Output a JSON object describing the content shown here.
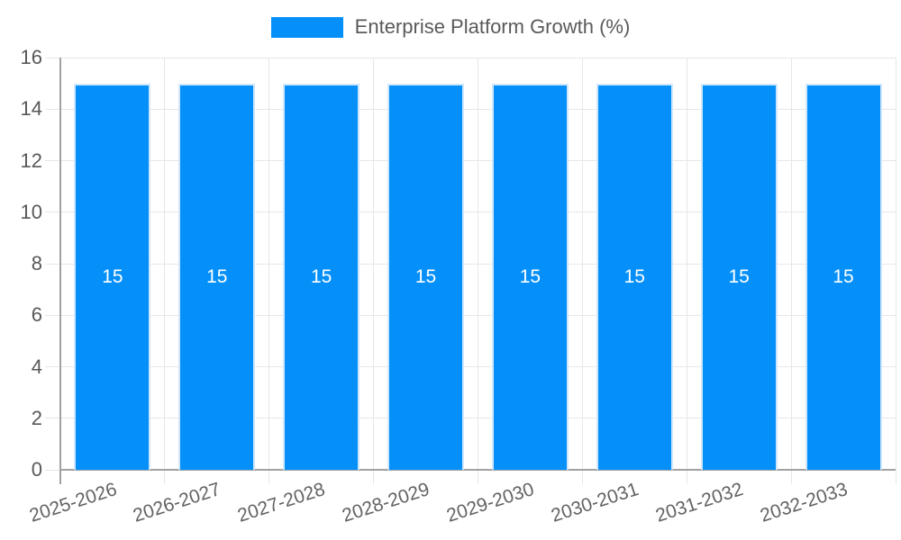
{
  "chart_data": {
    "type": "bar",
    "title": "Enterprise Platform Growth (%)",
    "categories": [
      "2025-2026",
      "2026-2027",
      "2027-2028",
      "2028-2029",
      "2029-2030",
      "2030-2031",
      "2031-2032",
      "2032-2033"
    ],
    "values": [
      15,
      15,
      15,
      15,
      15,
      15,
      15,
      15
    ],
    "value_labels": [
      "15",
      "15",
      "15",
      "15",
      "15",
      "15",
      "15",
      "15"
    ],
    "ylim": [
      0,
      16
    ],
    "yticks": [
      0,
      2,
      4,
      6,
      8,
      10,
      12,
      14,
      16
    ],
    "grid": true,
    "legend_position": "top",
    "colors": {
      "bar": "#0590f9",
      "bar_border": "#cfe7fd",
      "grid": "#e7e7e7",
      "axis": "#a1a1a1",
      "value_label": "#ffffff"
    }
  }
}
